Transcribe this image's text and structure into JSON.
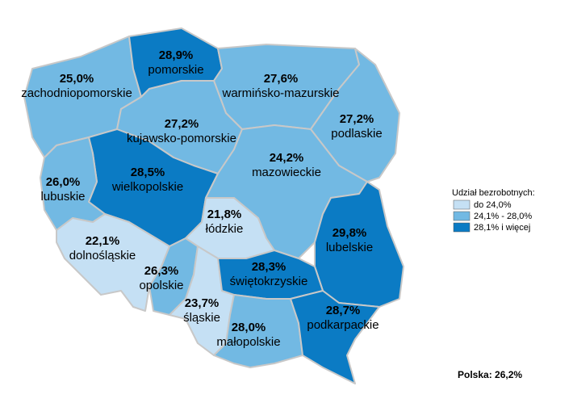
{
  "map": {
    "regions": [
      {
        "name": "zachodniopomorskie",
        "value": 25.0,
        "value_label": "25,0%",
        "color": "#72b9e3"
      },
      {
        "name": "pomorskie",
        "value": 28.9,
        "value_label": "28,9%",
        "color": "#0b7bc4"
      },
      {
        "name": "warmińsko-mazurskie",
        "value": 27.6,
        "value_label": "27,6%",
        "color": "#72b9e3"
      },
      {
        "name": "podlaskie",
        "value": 27.2,
        "value_label": "27,2%",
        "color": "#72b9e3"
      },
      {
        "name": "kujawsko-pomorskie",
        "value": 27.2,
        "value_label": "27,2%",
        "color": "#72b9e3"
      },
      {
        "name": "wielkopolskie",
        "value": 28.5,
        "value_label": "28,5%",
        "color": "#0b7bc4"
      },
      {
        "name": "lubuskie",
        "value": 26.0,
        "value_label": "26,0%",
        "color": "#72b9e3"
      },
      {
        "name": "mazowieckie",
        "value": 24.2,
        "value_label": "24,2%",
        "color": "#72b9e3"
      },
      {
        "name": "łódzkie",
        "value": 21.8,
        "value_label": "21,8%",
        "color": "#c5e0f4"
      },
      {
        "name": "lubelskie",
        "value": 29.8,
        "value_label": "29,8%",
        "color": "#0b7bc4"
      },
      {
        "name": "dolnośląskie",
        "value": 22.1,
        "value_label": "22,1%",
        "color": "#c5e0f4"
      },
      {
        "name": "opolskie",
        "value": 26.3,
        "value_label": "26,3%",
        "color": "#72b9e3"
      },
      {
        "name": "śląskie",
        "value": 23.7,
        "value_label": "23,7%",
        "color": "#c5e0f4"
      },
      {
        "name": "świętokrzyskie",
        "value": 28.3,
        "value_label": "28,3%",
        "color": "#0b7bc4"
      },
      {
        "name": "małopolskie",
        "value": 28.0,
        "value_label": "28,0%",
        "color": "#72b9e3"
      },
      {
        "name": "podkarpackie",
        "value": 28.7,
        "value_label": "28,7%",
        "color": "#0b7bc4"
      }
    ],
    "legend": {
      "title": "Udział bezrobotnych:",
      "items": [
        {
          "label": "do 24,0%",
          "color": "#c5e0f4"
        },
        {
          "label": "24,1% - 28,0%",
          "color": "#72b9e3"
        },
        {
          "label": "28,1% i więcej",
          "color": "#0b7bc4"
        }
      ]
    },
    "total": "Polska: 26,2%"
  }
}
